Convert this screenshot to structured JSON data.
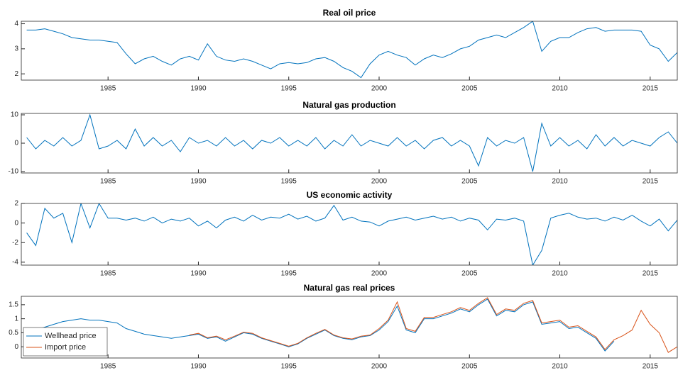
{
  "chart_data": [
    {
      "type": "line",
      "title": "Real oil price",
      "color": "#0072bd",
      "x": [
        1980.5,
        1981,
        1981.5,
        1982,
        1982.5,
        1983,
        1983.5,
        1984,
        1984.5,
        1985,
        1985.5,
        1986,
        1986.5,
        1987,
        1987.5,
        1988,
        1988.5,
        1989,
        1989.5,
        1990,
        1990.5,
        1991,
        1991.5,
        1992,
        1992.5,
        1993,
        1993.5,
        1994,
        1994.5,
        1995,
        1995.5,
        1996,
        1996.5,
        1997,
        1997.5,
        1998,
        1998.5,
        1999,
        1999.5,
        2000,
        2000.5,
        2001,
        2001.5,
        2002,
        2002.5,
        2003,
        2003.5,
        2004,
        2004.5,
        2005,
        2005.5,
        2006,
        2006.5,
        2007,
        2007.5,
        2008,
        2008.5,
        2009,
        2009.5,
        2010,
        2010.5,
        2011,
        2011.5,
        2012,
        2012.5,
        2013,
        2013.5,
        2014,
        2014.5,
        2015,
        2015.5,
        2016,
        2016.5
      ],
      "values": [
        3.75,
        3.75,
        3.8,
        3.7,
        3.6,
        3.45,
        3.4,
        3.35,
        3.35,
        3.3,
        3.25,
        2.8,
        2.4,
        2.6,
        2.7,
        2.5,
        2.35,
        2.6,
        2.7,
        2.55,
        3.2,
        2.7,
        2.55,
        2.5,
        2.6,
        2.5,
        2.35,
        2.2,
        2.4,
        2.45,
        2.4,
        2.45,
        2.6,
        2.65,
        2.5,
        2.25,
        2.1,
        1.85,
        2.4,
        2.75,
        2.9,
        2.75,
        2.65,
        2.35,
        2.6,
        2.75,
        2.65,
        2.8,
        3.0,
        3.1,
        3.35,
        3.45,
        3.55,
        3.45,
        3.65,
        3.85,
        4.1,
        2.9,
        3.3,
        3.45,
        3.45,
        3.65,
        3.8,
        3.85,
        3.7,
        3.75,
        3.75,
        3.75,
        3.7,
        3.15,
        3.0,
        2.5,
        2.85
      ],
      "xlim": [
        1980.2,
        2016.5
      ],
      "xticks": [
        1985,
        1990,
        1995,
        2000,
        2005,
        2010,
        2015
      ],
      "ylim": [
        1.75,
        4.1
      ],
      "yticks": [
        2,
        3,
        4
      ]
    },
    {
      "type": "line",
      "title": "Natural gas production",
      "color": "#0072bd",
      "x": [
        1980.5,
        1981,
        1981.5,
        1982,
        1982.5,
        1983,
        1983.5,
        1984,
        1984.5,
        1985,
        1985.5,
        1986,
        1986.5,
        1987,
        1987.5,
        1988,
        1988.5,
        1989,
        1989.5,
        1990,
        1990.5,
        1991,
        1991.5,
        1992,
        1992.5,
        1993,
        1993.5,
        1994,
        1994.5,
        1995,
        1995.5,
        1996,
        1996.5,
        1997,
        1997.5,
        1998,
        1998.5,
        1999,
        1999.5,
        2000,
        2000.5,
        2001,
        2001.5,
        2002,
        2002.5,
        2003,
        2003.5,
        2004,
        2004.5,
        2005,
        2005.5,
        2006,
        2006.5,
        2007,
        2007.5,
        2008,
        2008.5,
        2009,
        2009.5,
        2010,
        2010.5,
        2011,
        2011.5,
        2012,
        2012.5,
        2013,
        2013.5,
        2014,
        2014.5,
        2015,
        2015.5,
        2016,
        2016.5
      ],
      "values": [
        2,
        -2,
        1,
        -1,
        2,
        -1,
        1,
        10,
        -2,
        -1,
        1,
        -2,
        5,
        -1,
        2,
        -1,
        1,
        -3,
        2,
        0,
        1,
        -1,
        2,
        -1,
        1,
        -2,
        1,
        0,
        2,
        -1,
        1,
        -1,
        2,
        -2,
        1,
        -1,
        3,
        -1,
        1,
        0,
        -1,
        2,
        -1,
        1,
        -2,
        1,
        2,
        -1,
        1,
        -1,
        -8,
        2,
        -1,
        1,
        0,
        2,
        -10,
        7,
        -1,
        2,
        -1,
        1,
        -2,
        3,
        -1,
        2,
        -1,
        1,
        0,
        -1,
        2,
        4,
        0
      ],
      "xlim": [
        1980.2,
        2016.5
      ],
      "xticks": [
        1985,
        1990,
        1995,
        2000,
        2005,
        2010,
        2015
      ],
      "ylim": [
        -10.5,
        10.5
      ],
      "yticks": [
        -10,
        0,
        10
      ]
    },
    {
      "type": "line",
      "title": "US economic activity",
      "color": "#0072bd",
      "x": [
        1980.5,
        1981,
        1981.5,
        1982,
        1982.5,
        1983,
        1983.5,
        1984,
        1984.5,
        1985,
        1985.5,
        1986,
        1986.5,
        1987,
        1987.5,
        1988,
        1988.5,
        1989,
        1989.5,
        1990,
        1990.5,
        1991,
        1991.5,
        1992,
        1992.5,
        1993,
        1993.5,
        1994,
        1994.5,
        1995,
        1995.5,
        1996,
        1996.5,
        1997,
        1997.5,
        1998,
        1998.5,
        1999,
        1999.5,
        2000,
        2000.5,
        2001,
        2001.5,
        2002,
        2002.5,
        2003,
        2003.5,
        2004,
        2004.5,
        2005,
        2005.5,
        2006,
        2006.5,
        2007,
        2007.5,
        2008,
        2008.5,
        2009,
        2009.5,
        2010,
        2010.5,
        2011,
        2011.5,
        2012,
        2012.5,
        2013,
        2013.5,
        2014,
        2014.5,
        2015,
        2015.5,
        2016,
        2016.5
      ],
      "values": [
        -1,
        -2.3,
        1.5,
        0.5,
        1,
        -2,
        2,
        -0.5,
        2,
        0.5,
        0.5,
        0.3,
        0.5,
        0.2,
        0.6,
        0,
        0.4,
        0.2,
        0.5,
        -0.3,
        0.2,
        -0.5,
        0.3,
        0.6,
        0.2,
        0.8,
        0.3,
        0.6,
        0.5,
        0.9,
        0.4,
        0.7,
        0.2,
        0.5,
        1.8,
        0.3,
        0.6,
        0.2,
        0.1,
        -0.3,
        0.2,
        0.4,
        0.6,
        0.3,
        0.5,
        0.7,
        0.4,
        0.6,
        0.2,
        0.5,
        0.3,
        -0.7,
        0.4,
        0.3,
        0.5,
        0.2,
        -4.3,
        -2.8,
        0.5,
        0.8,
        1,
        0.6,
        0.4,
        0.5,
        0.2,
        0.6,
        0.3,
        0.8,
        0.2,
        -0.3,
        0.4,
        -0.8,
        0.3
      ],
      "xlim": [
        1980.2,
        2016.5
      ],
      "xticks": [
        1985,
        1990,
        1995,
        2000,
        2005,
        2010,
        2015
      ],
      "ylim": [
        -4.3,
        2
      ],
      "yticks": [
        -4,
        -2,
        0,
        2
      ]
    },
    {
      "type": "line",
      "title": "Natural gas real prices",
      "legend": "lower left",
      "x": [
        1980.5,
        1981,
        1981.5,
        1982,
        1982.5,
        1983,
        1983.5,
        1984,
        1984.5,
        1985,
        1985.5,
        1986,
        1986.5,
        1987,
        1987.5,
        1988,
        1988.5,
        1989,
        1989.5,
        1990,
        1990.5,
        1991,
        1991.5,
        1992,
        1992.5,
        1993,
        1993.5,
        1994,
        1994.5,
        1995,
        1995.5,
        1996,
        1996.5,
        1997,
        1997.5,
        1998,
        1998.5,
        1999,
        1999.5,
        2000,
        2000.5,
        2001,
        2001.5,
        2002,
        2002.5,
        2003,
        2003.5,
        2004,
        2004.5,
        2005,
        2005.5,
        2006,
        2006.5,
        2007,
        2007.5,
        2008,
        2008.5,
        2009,
        2009.5,
        2010,
        2010.5,
        2011,
        2011.5,
        2012,
        2012.5,
        2013,
        2013.5,
        2014,
        2014.5,
        2015,
        2015.5,
        2016,
        2016.5
      ],
      "series": [
        {
          "name": "Wellhead price",
          "color": "#0072bd",
          "values": [
            0.55,
            0.6,
            0.7,
            0.8,
            0.9,
            0.95,
            1.0,
            0.95,
            0.95,
            0.9,
            0.85,
            0.65,
            0.55,
            0.45,
            0.4,
            0.35,
            0.3,
            0.35,
            0.4,
            0.45,
            0.3,
            0.35,
            0.2,
            0.35,
            0.5,
            0.45,
            0.3,
            0.2,
            0.1,
            0.0,
            0.1,
            0.3,
            0.45,
            0.6,
            0.4,
            0.3,
            0.25,
            0.35,
            0.4,
            0.6,
            0.9,
            1.45,
            0.6,
            0.5,
            1.0,
            1.0,
            1.1,
            1.2,
            1.35,
            1.25,
            1.5,
            1.7,
            1.1,
            1.3,
            1.25,
            1.5,
            1.6,
            0.8,
            0.85,
            0.9,
            0.65,
            0.7,
            0.5,
            0.3,
            -0.15,
            0.2,
            null,
            null,
            null,
            null,
            null,
            null,
            null
          ]
        },
        {
          "name": "Import price",
          "color": "#d95319",
          "values": [
            null,
            null,
            null,
            null,
            null,
            null,
            null,
            null,
            null,
            null,
            null,
            null,
            null,
            null,
            null,
            null,
            null,
            null,
            0.42,
            0.48,
            0.32,
            0.38,
            0.25,
            0.38,
            0.52,
            0.48,
            0.32,
            0.22,
            0.12,
            0.02,
            0.12,
            0.32,
            0.48,
            0.62,
            0.42,
            0.32,
            0.28,
            0.38,
            0.42,
            0.65,
            0.95,
            1.6,
            0.65,
            0.55,
            1.05,
            1.05,
            1.15,
            1.25,
            1.4,
            1.3,
            1.55,
            1.75,
            1.15,
            1.35,
            1.3,
            1.55,
            1.65,
            0.85,
            0.9,
            0.95,
            0.7,
            0.75,
            0.55,
            0.35,
            -0.1,
            0.25,
            0.4,
            0.6,
            1.3,
            0.8,
            0.5,
            -0.2,
            0.0
          ]
        }
      ],
      "xlim": [
        1980.2,
        2016.5
      ],
      "xticks": [
        1985,
        1990,
        1995,
        2000,
        2005,
        2010,
        2015
      ],
      "ylim": [
        -0.4,
        1.8
      ],
      "yticks": [
        0,
        0.5,
        1,
        1.5
      ]
    }
  ]
}
